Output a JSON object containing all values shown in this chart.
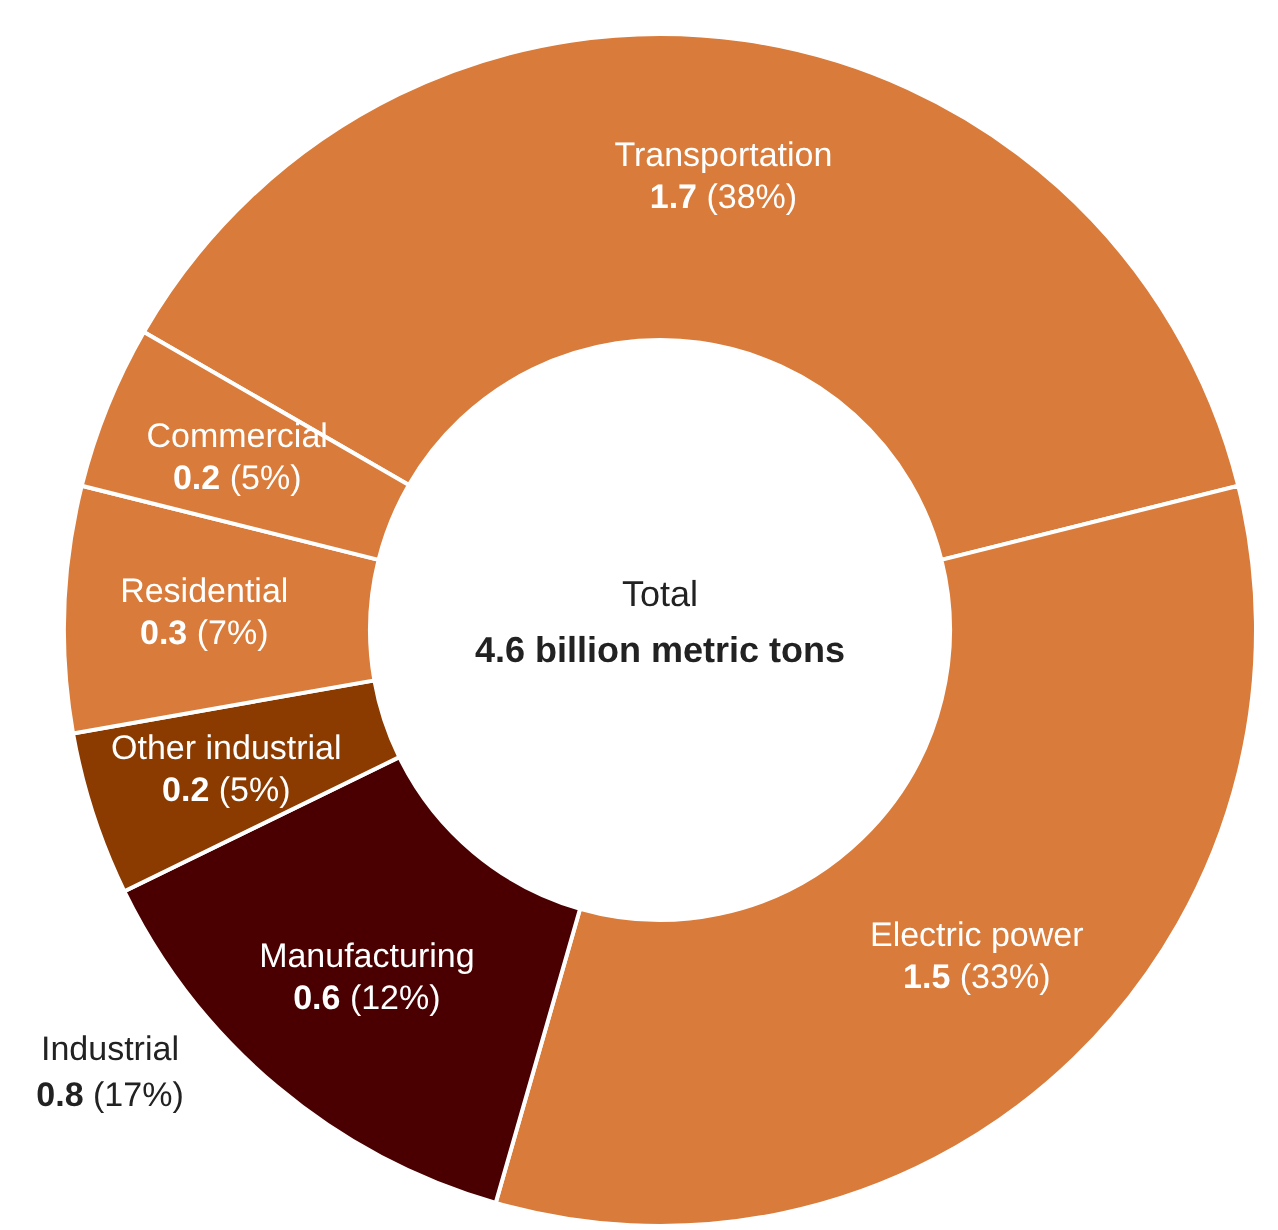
{
  "chart_data": {
    "type": "donut",
    "title": "Total",
    "subtitle": "4.6 billion metric tons",
    "categories": [
      "Transportation",
      "Electric power",
      "Manufacturing",
      "Other industrial",
      "Residential",
      "Commercial"
    ],
    "values": [
      1.7,
      1.5,
      0.6,
      0.2,
      0.3,
      0.2
    ],
    "value_labels": [
      "1.7 (38%)",
      "1.5 (33%)",
      "0.6 (12%)",
      "0.2 (5%)",
      "0.3 (7%)",
      "0.2 (5%)"
    ],
    "colors": [
      "#d97b3a",
      "#d97b3a",
      "#4a0000",
      "#8b3a00",
      "#d97b3a",
      "#d97b3a"
    ],
    "annotations": [
      "Industrial\n0.8 (17%)"
    ],
    "legend": false
  }
}
